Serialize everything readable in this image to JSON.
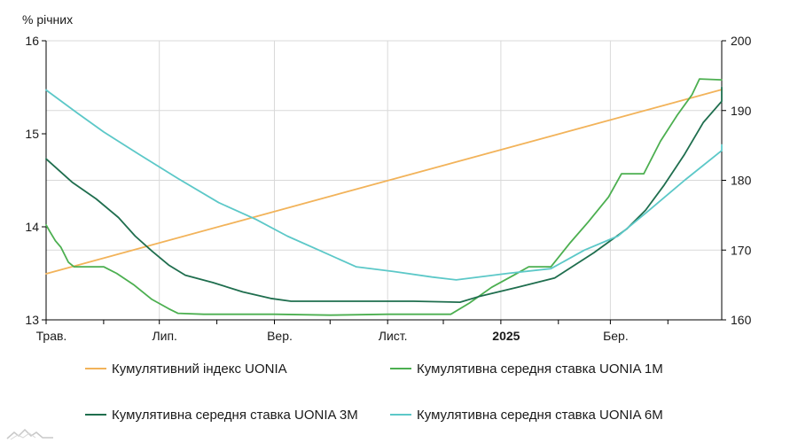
{
  "chart_data": {
    "type": "line",
    "ylabel": "% річних",
    "y_left": {
      "min": 13,
      "max": 16,
      "ticks": [
        "13",
        "14",
        "15",
        "16"
      ]
    },
    "y_right": {
      "min": 160,
      "max": 200,
      "ticks": [
        "160",
        "170",
        "180",
        "190",
        "200"
      ]
    },
    "x_ticks": [
      {
        "label": "Трав.",
        "date": "2024-05-01",
        "bold": false
      },
      {
        "label": "Лип.",
        "date": "2024-07-01",
        "bold": false
      },
      {
        "label": "Вер.",
        "date": "2024-09-01",
        "bold": false
      },
      {
        "label": "Лист.",
        "date": "2024-11-01",
        "bold": false
      },
      {
        "label": "2025",
        "date": "2025-01-01",
        "bold": true
      },
      {
        "label": "Бер.",
        "date": "2025-03-01",
        "bold": false
      }
    ],
    "x_range": [
      "2024-05-01",
      "2025-04-30"
    ],
    "grid": true,
    "legend_position": "bottom",
    "series": [
      {
        "name": "Кумулятивний індекс UONIA",
        "color": "#f2b35a",
        "axis": "right",
        "points": [
          [
            "2024-05-01",
            166.6
          ],
          [
            "2025-04-30",
            193.0
          ]
        ]
      },
      {
        "name": "Кумулятивна середня ставка UONIA 1M",
        "color": "#4caf50",
        "axis": "left",
        "points": [
          [
            "2024-05-01",
            14.02
          ],
          [
            "2024-05-03",
            13.95
          ],
          [
            "2024-05-06",
            13.85
          ],
          [
            "2024-05-09",
            13.78
          ],
          [
            "2024-05-13",
            13.62
          ],
          [
            "2024-05-16",
            13.57
          ],
          [
            "2024-05-23",
            13.57
          ],
          [
            "2024-06-01",
            13.57
          ],
          [
            "2024-06-08",
            13.5
          ],
          [
            "2024-06-17",
            13.38
          ],
          [
            "2024-06-27",
            13.22
          ],
          [
            "2024-07-06",
            13.12
          ],
          [
            "2024-07-11",
            13.07
          ],
          [
            "2024-07-25",
            13.06
          ],
          [
            "2024-09-01",
            13.06
          ],
          [
            "2024-10-01",
            13.05
          ],
          [
            "2024-11-01",
            13.06
          ],
          [
            "2024-12-05",
            13.06
          ],
          [
            "2024-12-15",
            13.18
          ],
          [
            "2024-12-27",
            13.35
          ],
          [
            "2025-01-08",
            13.48
          ],
          [
            "2025-01-16",
            13.57
          ],
          [
            "2025-01-28",
            13.57
          ],
          [
            "2025-02-07",
            13.82
          ],
          [
            "2025-02-17",
            14.05
          ],
          [
            "2025-02-28",
            14.32
          ],
          [
            "2025-03-07",
            14.57
          ],
          [
            "2025-03-19",
            14.57
          ],
          [
            "2025-03-28",
            14.92
          ],
          [
            "2025-04-06",
            15.2
          ],
          [
            "2025-04-14",
            15.42
          ],
          [
            "2025-04-18",
            15.59
          ],
          [
            "2025-04-30",
            15.58
          ]
        ]
      },
      {
        "name": "Кумулятивна середня ставка UONIA 3M",
        "color": "#1f6e4e",
        "axis": "left",
        "points": [
          [
            "2024-05-01",
            14.73
          ],
          [
            "2024-05-15",
            14.48
          ],
          [
            "2024-05-28",
            14.3
          ],
          [
            "2024-06-09",
            14.1
          ],
          [
            "2024-06-18",
            13.9
          ],
          [
            "2024-06-27",
            13.74
          ],
          [
            "2024-07-06",
            13.59
          ],
          [
            "2024-07-15",
            13.48
          ],
          [
            "2024-07-30",
            13.4
          ],
          [
            "2024-08-15",
            13.3
          ],
          [
            "2024-08-30",
            13.23
          ],
          [
            "2024-09-10",
            13.2
          ],
          [
            "2024-10-15",
            13.2
          ],
          [
            "2024-11-15",
            13.2
          ],
          [
            "2024-12-10",
            13.19
          ],
          [
            "2024-12-20",
            13.25
          ],
          [
            "2025-01-10",
            13.35
          ],
          [
            "2025-01-30",
            13.45
          ],
          [
            "2025-02-20",
            13.72
          ],
          [
            "2025-03-10",
            13.98
          ],
          [
            "2025-03-20",
            14.18
          ],
          [
            "2025-03-30",
            14.45
          ],
          [
            "2025-04-10",
            14.78
          ],
          [
            "2025-04-20",
            15.12
          ],
          [
            "2025-04-30",
            15.35
          ],
          [
            "2025-05-07",
            15.5
          ]
        ]
      },
      {
        "name": "Кумулятивна середня ставка UONIA 6M",
        "color": "#5cc8c8",
        "axis": "left",
        "points": [
          [
            "2024-05-01",
            15.47
          ],
          [
            "2024-05-18",
            15.22
          ],
          [
            "2024-06-01",
            15.02
          ],
          [
            "2024-06-20",
            14.78
          ],
          [
            "2024-07-11",
            14.52
          ],
          [
            "2024-08-02",
            14.26
          ],
          [
            "2024-08-22",
            14.08
          ],
          [
            "2024-09-08",
            13.9
          ],
          [
            "2024-09-25",
            13.75
          ],
          [
            "2024-10-15",
            13.57
          ],
          [
            "2024-11-04",
            13.52
          ],
          [
            "2024-11-25",
            13.46
          ],
          [
            "2024-12-08",
            13.43
          ],
          [
            "2025-01-05",
            13.5
          ],
          [
            "2025-01-28",
            13.55
          ],
          [
            "2025-02-15",
            13.75
          ],
          [
            "2025-03-05",
            13.9
          ],
          [
            "2025-03-22",
            14.18
          ],
          [
            "2025-04-10",
            14.5
          ],
          [
            "2025-04-30",
            14.82
          ],
          [
            "2025-05-05",
            14.88
          ]
        ]
      }
    ]
  },
  "legend": [
    {
      "label": "Кумулятивний індекс UONIA",
      "color": "#f2b35a"
    },
    {
      "label": "Кумулятивна середня ставка UONIA 1M",
      "color": "#4caf50"
    },
    {
      "label": "Кумулятивна середня ставка UONIA 3M",
      "color": "#1f6e4e"
    },
    {
      "label": "Кумулятивна середня ставка UONIA 6M",
      "color": "#5cc8c8"
    }
  ]
}
